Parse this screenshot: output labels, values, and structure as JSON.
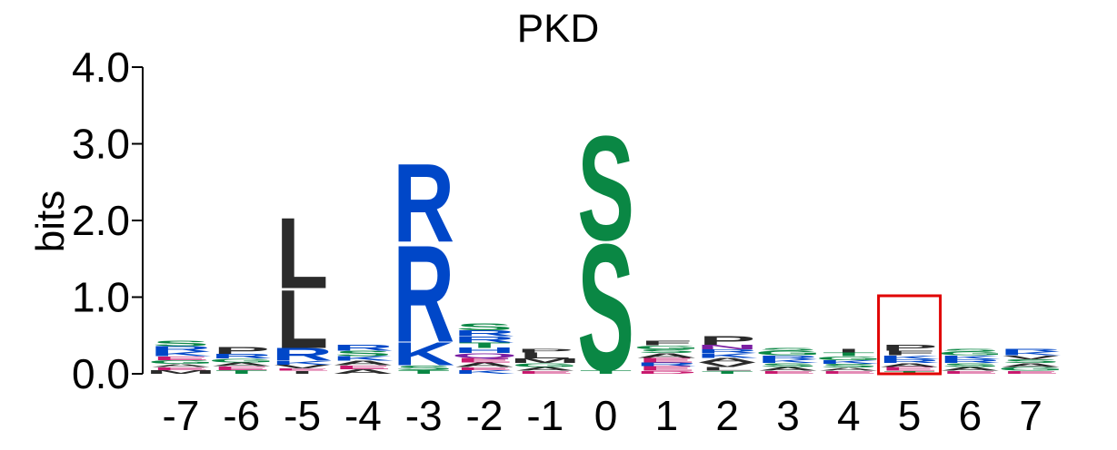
{
  "chart_data": {
    "type": "sequence-logo",
    "title": "PKD",
    "ylabel": "bits",
    "xlabel": "",
    "ylim": [
      0,
      4
    ],
    "yticks": [
      "0.0",
      "1.0",
      "2.0",
      "3.0",
      "4.0"
    ],
    "highlighted_position": "5",
    "colors": {
      "S": "#0a8744",
      "T": "#0a8744",
      "G": "#0a8744",
      "R": "#0047c8",
      "K": "#0047c8",
      "H": "#0047c8",
      "L": "#2b2b2b",
      "P": "#2b2b2b",
      "V": "#2b2b2b",
      "A": "#2b2b2b",
      "I": "#2b2b2b",
      "M": "#2b2b2b",
      "F": "#2b2b2b",
      "W": "#2b2b2b",
      "E": "#c8196e",
      "D": "#c8196e",
      "Q": "#7b1fa2",
      "N": "#7b1fa2",
      "Y": "#0a8744",
      "C": "#0a8744",
      "highlight": "#e00000"
    },
    "positions": [
      {
        "label": "-7",
        "stack": [
          [
            "M",
            0.05
          ],
          [
            "E",
            0.04
          ],
          [
            "A",
            0.04
          ],
          [
            "G",
            0.05
          ],
          [
            "E",
            0.05
          ],
          [
            "K",
            0.06
          ],
          [
            "R",
            0.07
          ],
          [
            "S",
            0.07
          ]
        ]
      },
      {
        "label": "-6",
        "stack": [
          [
            "T",
            0.05
          ],
          [
            "E",
            0.05
          ],
          [
            "A",
            0.05
          ],
          [
            "G",
            0.05
          ],
          [
            "R",
            0.06
          ],
          [
            "P",
            0.09
          ]
        ]
      },
      {
        "label": "-5",
        "stack": [
          [
            "I",
            0.04
          ],
          [
            "E",
            0.03
          ],
          [
            "V",
            0.05
          ],
          [
            "K",
            0.05
          ],
          [
            "R",
            0.17
          ],
          [
            "L",
            0.78
          ],
          [
            "L",
            0.95
          ]
        ]
      },
      {
        "label": "-4",
        "stack": [
          [
            "A",
            0.06
          ],
          [
            "E",
            0.05
          ],
          [
            "A",
            0.06
          ],
          [
            "K",
            0.06
          ],
          [
            "S",
            0.07
          ],
          [
            "R",
            0.08
          ]
        ]
      },
      {
        "label": "-3",
        "stack": [
          [
            "T",
            0.05
          ],
          [
            "S",
            0.06
          ],
          [
            "K",
            0.31
          ],
          [
            "R",
            1.3
          ],
          [
            "R",
            1.05
          ]
        ]
      },
      {
        "label": "-2",
        "stack": [
          [
            "K",
            0.05
          ],
          [
            "E",
            0.04
          ],
          [
            "A",
            0.06
          ],
          [
            "E",
            0.06
          ],
          [
            "Q",
            0.06
          ],
          [
            "H",
            0.07
          ],
          [
            "T",
            0.07
          ],
          [
            "R",
            0.08
          ],
          [
            "R",
            0.08
          ],
          [
            "S",
            0.09
          ]
        ]
      },
      {
        "label": "-1",
        "stack": [
          [
            "E",
            0.04
          ],
          [
            "A",
            0.05
          ],
          [
            "G",
            0.05
          ],
          [
            "M",
            0.06
          ],
          [
            "L",
            0.08
          ],
          [
            "P",
            0.05
          ]
        ]
      },
      {
        "label": "0",
        "stack": [
          [
            "T",
            0.05
          ],
          [
            "S",
            1.7
          ],
          [
            "S",
            1.4
          ]
        ]
      },
      {
        "label": "1",
        "stack": [
          [
            "D",
            0.04
          ],
          [
            "E",
            0.06
          ],
          [
            "R",
            0.05
          ],
          [
            "E",
            0.06
          ],
          [
            "A",
            0.06
          ],
          [
            "S",
            0.05
          ],
          [
            "G",
            0.05
          ],
          [
            "F",
            0.06
          ]
        ]
      },
      {
        "label": "2",
        "stack": [
          [
            "T",
            0.04
          ],
          [
            "L",
            0.05
          ],
          [
            "V",
            0.06
          ],
          [
            "A",
            0.06
          ],
          [
            "K",
            0.06
          ],
          [
            "R",
            0.05
          ],
          [
            "N",
            0.06
          ],
          [
            "P",
            0.12
          ]
        ]
      },
      {
        "label": "3",
        "stack": [
          [
            "E",
            0.04
          ],
          [
            "A",
            0.05
          ],
          [
            "S",
            0.05
          ],
          [
            "K",
            0.05
          ],
          [
            "R",
            0.05
          ],
          [
            "G",
            0.06
          ],
          [
            "S",
            0.04
          ]
        ]
      },
      {
        "label": "4",
        "stack": [
          [
            "E",
            0.04
          ],
          [
            "A",
            0.04
          ],
          [
            "S",
            0.05
          ],
          [
            "K",
            0.05
          ],
          [
            "G",
            0.05
          ],
          [
            "T",
            0.05
          ],
          [
            "I",
            0.05
          ]
        ]
      },
      {
        "label": "5",
        "stack": [
          [
            "T",
            0.04
          ],
          [
            "E",
            0.05
          ],
          [
            "A",
            0.05
          ],
          [
            "R",
            0.05
          ],
          [
            "K",
            0.05
          ],
          [
            "F",
            0.06
          ],
          [
            "P",
            0.08
          ]
        ]
      },
      {
        "label": "6",
        "stack": [
          [
            "E",
            0.04
          ],
          [
            "A",
            0.05
          ],
          [
            "S",
            0.05
          ],
          [
            "R",
            0.05
          ],
          [
            "K",
            0.05
          ],
          [
            "G",
            0.05
          ],
          [
            "S",
            0.04
          ]
        ]
      },
      {
        "label": "7",
        "stack": [
          [
            "E",
            0.04
          ],
          [
            "G",
            0.05
          ],
          [
            "A",
            0.05
          ],
          [
            "S",
            0.05
          ],
          [
            "V",
            0.05
          ],
          [
            "K",
            0.05
          ],
          [
            "R",
            0.04
          ]
        ]
      }
    ]
  }
}
